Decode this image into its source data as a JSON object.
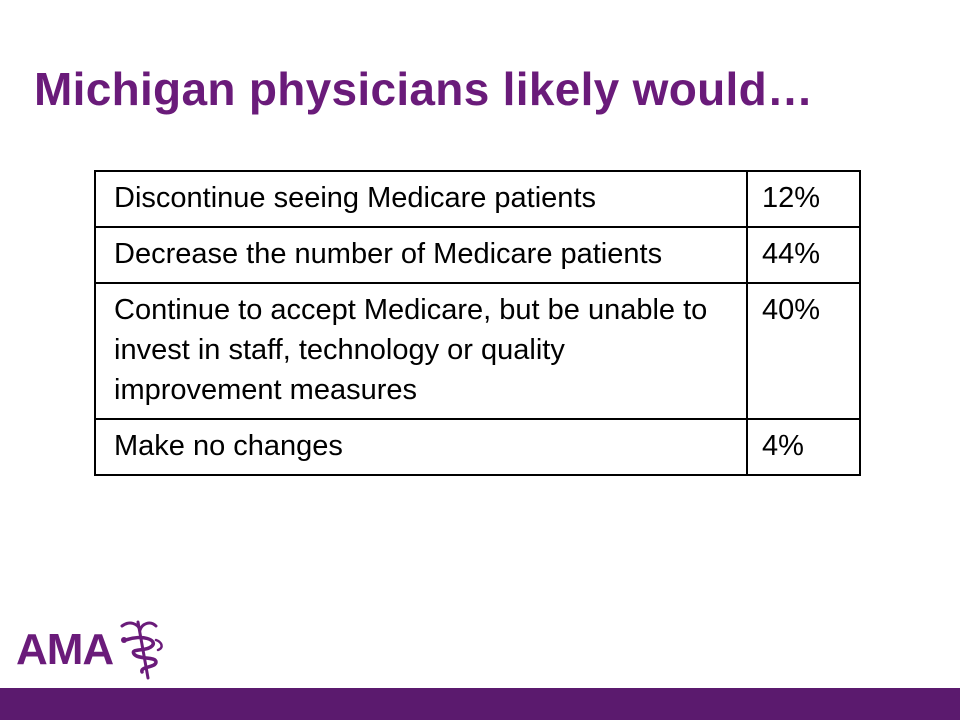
{
  "slide": {
    "title": "Michigan physicians likely would…"
  },
  "table": {
    "rows": [
      {
        "answer": "Discontinue seeing Medicare patients",
        "percent": "12%"
      },
      {
        "answer": "Decrease the number of Medicare patients",
        "percent": "44%"
      },
      {
        "answer": "Continue to accept Medicare, but be unable to invest in staff, technology or quality improvement measures",
        "percent": "40%"
      },
      {
        "answer": "Make no changes",
        "percent": "4%"
      }
    ]
  },
  "logo": {
    "text": "AMA",
    "icon": "caduceus-icon"
  },
  "colors": {
    "brand_purple": "#6a1b7a",
    "footer_bar": "#5b1a6e",
    "text": "#000000"
  }
}
